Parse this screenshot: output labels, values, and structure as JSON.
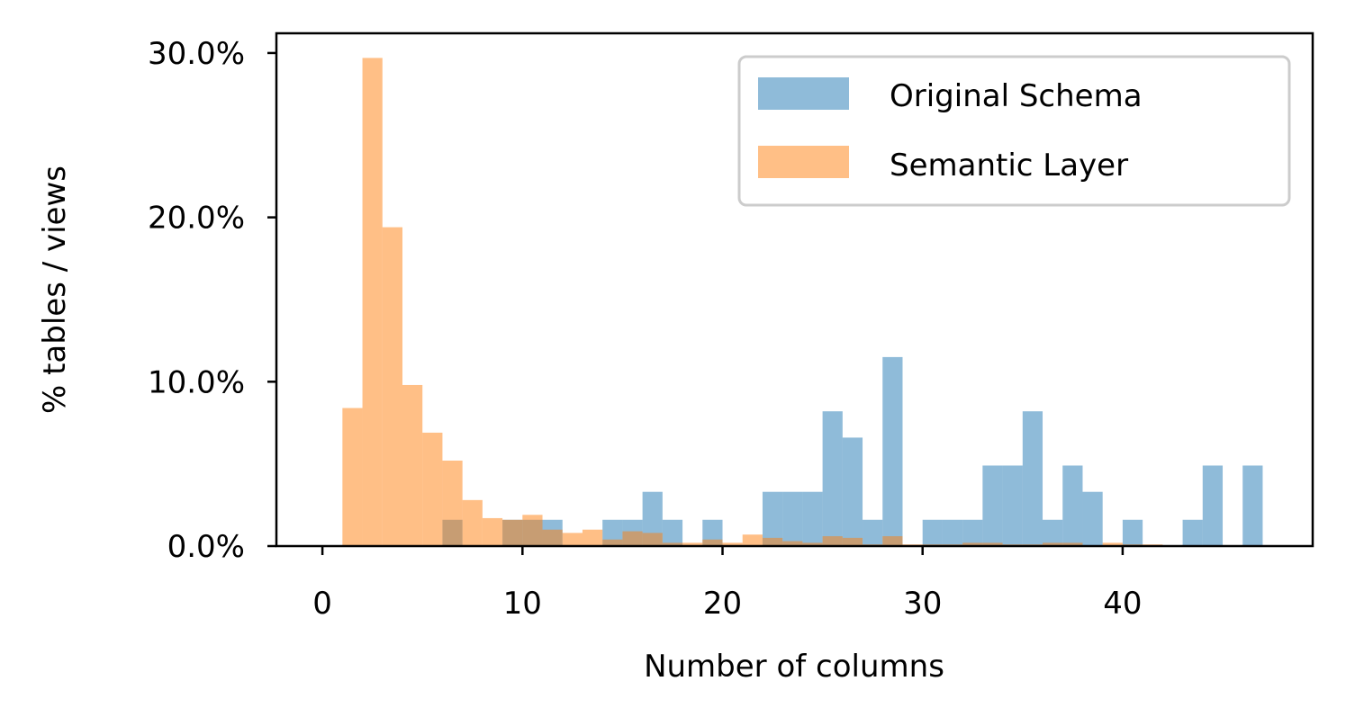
{
  "chart_data": {
    "type": "bar",
    "xlabel": "Number of columns",
    "ylabel": "% tables / views",
    "xlim": [
      -2.3,
      49.5
    ],
    "ylim": [
      0,
      31.2
    ],
    "x_ticks": [
      {
        "value": 0,
        "label": "0"
      },
      {
        "value": 10,
        "label": "10"
      },
      {
        "value": 20,
        "label": "20"
      },
      {
        "value": 30,
        "label": "30"
      },
      {
        "value": 40,
        "label": "40"
      }
    ],
    "y_ticks": [
      {
        "value": 0,
        "label": "0.0%"
      },
      {
        "value": 10,
        "label": "10.0%"
      },
      {
        "value": 20,
        "label": "20.0%"
      },
      {
        "value": 30,
        "label": "30.0%"
      }
    ],
    "bin_width": 1,
    "grid": false,
    "legend_position": "top-right",
    "series": [
      {
        "name": "Original Schema",
        "color": "#1f77b4",
        "opacity": 0.5,
        "bins": [
          {
            "x0": 6,
            "value": 1.6
          },
          {
            "x0": 9,
            "value": 1.6
          },
          {
            "x0": 10,
            "value": 1.6
          },
          {
            "x0": 11,
            "value": 1.6
          },
          {
            "x0": 14,
            "value": 1.6
          },
          {
            "x0": 15,
            "value": 1.6
          },
          {
            "x0": 16,
            "value": 3.3
          },
          {
            "x0": 17,
            "value": 1.6
          },
          {
            "x0": 19,
            "value": 1.6
          },
          {
            "x0": 22,
            "value": 3.3
          },
          {
            "x0": 23,
            "value": 3.3
          },
          {
            "x0": 24,
            "value": 3.3
          },
          {
            "x0": 25,
            "value": 8.2
          },
          {
            "x0": 26,
            "value": 6.6
          },
          {
            "x0": 27,
            "value": 1.6
          },
          {
            "x0": 28,
            "value": 11.5
          },
          {
            "x0": 30,
            "value": 1.6
          },
          {
            "x0": 31,
            "value": 1.6
          },
          {
            "x0": 32,
            "value": 1.6
          },
          {
            "x0": 33,
            "value": 4.9
          },
          {
            "x0": 34,
            "value": 4.9
          },
          {
            "x0": 35,
            "value": 8.2
          },
          {
            "x0": 36,
            "value": 1.6
          },
          {
            "x0": 37,
            "value": 4.9
          },
          {
            "x0": 38,
            "value": 3.3
          },
          {
            "x0": 40,
            "value": 1.6
          },
          {
            "x0": 43,
            "value": 1.6
          },
          {
            "x0": 44,
            "value": 4.9
          },
          {
            "x0": 46,
            "value": 4.9
          }
        ]
      },
      {
        "name": "Semantic Layer",
        "color": "#ff7f0e",
        "opacity": 0.5,
        "bins": [
          {
            "x0": 1,
            "value": 8.4
          },
          {
            "x0": 2,
            "value": 29.7
          },
          {
            "x0": 3,
            "value": 19.4
          },
          {
            "x0": 4,
            "value": 9.8
          },
          {
            "x0": 5,
            "value": 6.9
          },
          {
            "x0": 6,
            "value": 5.2
          },
          {
            "x0": 7,
            "value": 2.8
          },
          {
            "x0": 8,
            "value": 1.7
          },
          {
            "x0": 9,
            "value": 1.6
          },
          {
            "x0": 10,
            "value": 1.9
          },
          {
            "x0": 11,
            "value": 1.0
          },
          {
            "x0": 12,
            "value": 0.8
          },
          {
            "x0": 13,
            "value": 1.0
          },
          {
            "x0": 14,
            "value": 0.4
          },
          {
            "x0": 15,
            "value": 0.9
          },
          {
            "x0": 16,
            "value": 0.8
          },
          {
            "x0": 17,
            "value": 0.2
          },
          {
            "x0": 18,
            "value": 0.2
          },
          {
            "x0": 19,
            "value": 0.4
          },
          {
            "x0": 20,
            "value": 0.2
          },
          {
            "x0": 21,
            "value": 0.7
          },
          {
            "x0": 22,
            "value": 0.5
          },
          {
            "x0": 23,
            "value": 0.3
          },
          {
            "x0": 24,
            "value": 0.2
          },
          {
            "x0": 25,
            "value": 0.6
          },
          {
            "x0": 26,
            "value": 0.5
          },
          {
            "x0": 27,
            "value": 0.1
          },
          {
            "x0": 28,
            "value": 0.6
          },
          {
            "x0": 29,
            "value": 0.1
          },
          {
            "x0": 30,
            "value": 0.1
          },
          {
            "x0": 31,
            "value": 0.1
          },
          {
            "x0": 32,
            "value": 0.2
          },
          {
            "x0": 33,
            "value": 0.2
          },
          {
            "x0": 34,
            "value": 0.1
          },
          {
            "x0": 35,
            "value": 0.1
          },
          {
            "x0": 36,
            "value": 0.2
          },
          {
            "x0": 37,
            "value": 0.2
          },
          {
            "x0": 39,
            "value": 0.2
          },
          {
            "x0": 40,
            "value": 0.1
          },
          {
            "x0": 41,
            "value": 0.1
          }
        ]
      }
    ]
  }
}
